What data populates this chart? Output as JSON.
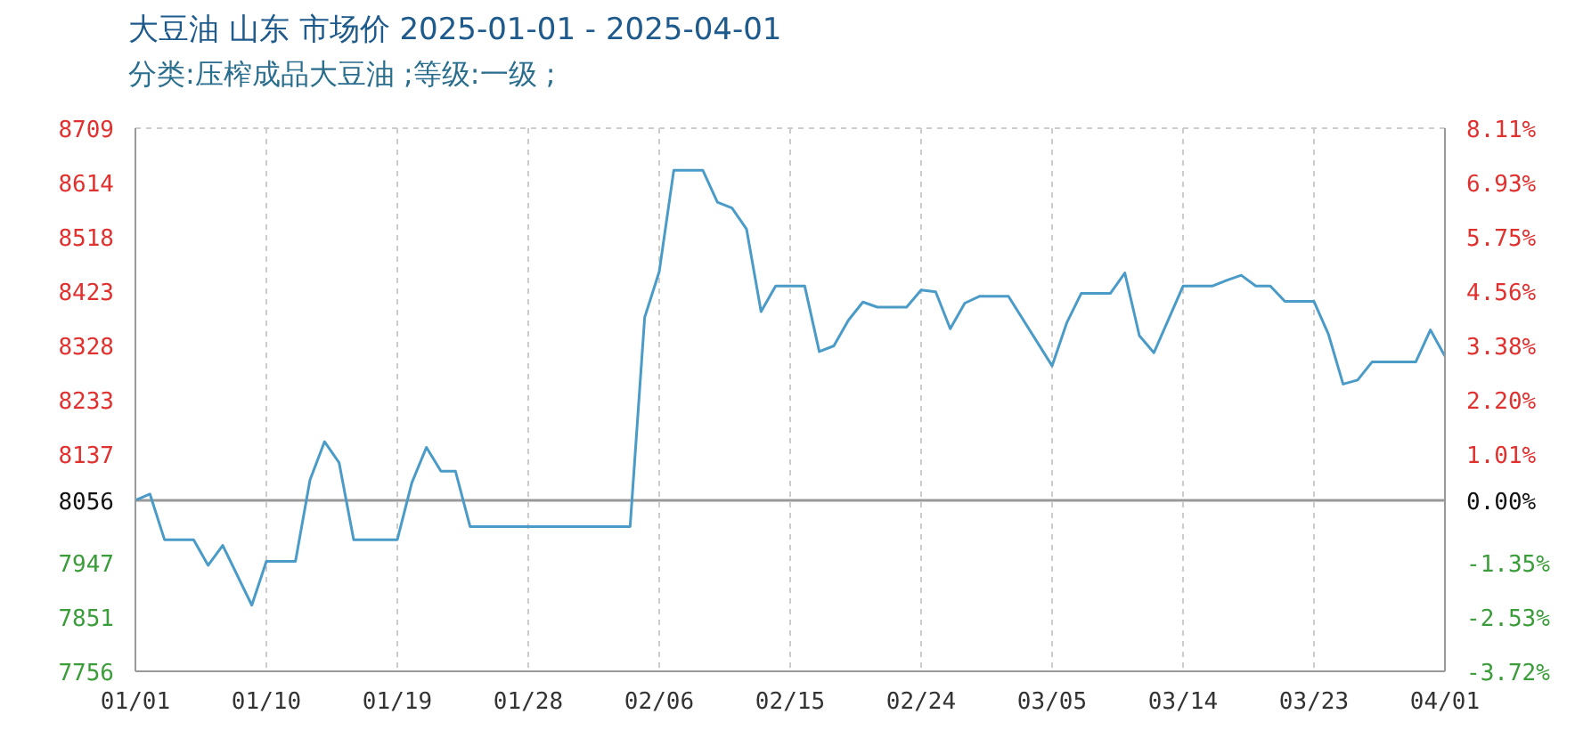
{
  "chart_data": {
    "type": "line",
    "title": "大豆油 山东 市场价 2025-01-01 - 2025-04-01",
    "subtitle": "分类:压榨成品大豆油 ;等级:一级 ;",
    "x": [
      "2025-01-01",
      "2025-01-02",
      "2025-01-03",
      "2025-01-05",
      "2025-01-06",
      "2025-01-07",
      "2025-01-09",
      "2025-01-10",
      "2025-01-12",
      "2025-01-13",
      "2025-01-14",
      "2025-01-15",
      "2025-01-16",
      "2025-01-19",
      "2025-01-20",
      "2025-01-21",
      "2025-01-22",
      "2025-01-23",
      "2025-01-24",
      "2025-02-04",
      "2025-02-05",
      "2025-02-06",
      "2025-02-07",
      "2025-02-09",
      "2025-02-10",
      "2025-02-11",
      "2025-02-12",
      "2025-02-13",
      "2025-02-14",
      "2025-02-16",
      "2025-02-17",
      "2025-02-18",
      "2025-02-19",
      "2025-02-20",
      "2025-02-21",
      "2025-02-23",
      "2025-02-24",
      "2025-02-25",
      "2025-02-26",
      "2025-02-27",
      "2025-02-28",
      "2025-03-02",
      "2025-03-05",
      "2025-03-06",
      "2025-03-07",
      "2025-03-09",
      "2025-03-10",
      "2025-03-11",
      "2025-03-12",
      "2025-03-14",
      "2025-03-16",
      "2025-03-17",
      "2025-03-18",
      "2025-03-19",
      "2025-03-20",
      "2025-03-21",
      "2025-03-23",
      "2025-03-24",
      "2025-03-25",
      "2025-03-26",
      "2025-03-27",
      "2025-03-30",
      "2025-03-31",
      "2025-04-01"
    ],
    "series": [
      {
        "color": "#4b9bc8",
        "values": [
          8056,
          8067,
          7987,
          7987,
          7942,
          7977,
          7872,
          7949,
          7949,
          8092,
          8159,
          8122,
          7987,
          7987,
          8087,
          8149,
          8107,
          8107,
          8010,
          8010,
          8377,
          8457,
          8635,
          8635,
          8579,
          8569,
          8532,
          8387,
          8432,
          8432,
          8317,
          8327,
          8372,
          8404,
          8395,
          8395,
          8425,
          8422,
          8357,
          8402,
          8414,
          8414,
          8292,
          8367,
          8419,
          8419,
          8455,
          8345,
          8315,
          8432,
          8432,
          8442,
          8451,
          8432,
          8432,
          8405,
          8405,
          8347,
          8260,
          8267,
          8299,
          8299,
          8355,
          8309
        ]
      }
    ],
    "xlim": [
      "2025-01-01",
      "2025-04-01"
    ],
    "xticks": [
      {
        "value": "2025-01-01",
        "label": "01/01"
      },
      {
        "value": "2025-01-10",
        "label": "01/10"
      },
      {
        "value": "2025-01-19",
        "label": "01/19"
      },
      {
        "value": "2025-01-28",
        "label": "01/28"
      },
      {
        "value": "2025-02-06",
        "label": "02/06"
      },
      {
        "value": "2025-02-15",
        "label": "02/15"
      },
      {
        "value": "2025-02-24",
        "label": "02/24"
      },
      {
        "value": "2025-03-05",
        "label": "03/05"
      },
      {
        "value": "2025-03-14",
        "label": "03/14"
      },
      {
        "value": "2025-03-23",
        "label": "03/23"
      },
      {
        "value": "2025-04-01",
        "label": "04/01"
      }
    ],
    "ylim": [
      7756,
      8709
    ],
    "yticks": [
      8709,
      8614,
      8518,
      8423,
      8328,
      8233,
      8137,
      8056,
      7947,
      7851,
      7756
    ],
    "y2lim": [
      -3.72,
      8.11
    ],
    "y2ticks": [
      {
        "value": 8.11,
        "label": "8.11%"
      },
      {
        "value": 6.93,
        "label": "6.93%"
      },
      {
        "value": 5.75,
        "label": "5.75%"
      },
      {
        "value": 4.56,
        "label": "4.56%"
      },
      {
        "value": 3.38,
        "label": "3.38%"
      },
      {
        "value": 2.2,
        "label": "2.20%"
      },
      {
        "value": 1.01,
        "label": "1.01%"
      },
      {
        "value": 0,
        "label": "0.00%"
      },
      {
        "value": -1.35,
        "label": "-1.35%"
      },
      {
        "value": -2.53,
        "label": "-2.53%"
      },
      {
        "value": -3.72,
        "label": "-3.72%"
      }
    ],
    "ref_lines": [
      {
        "axis": "y",
        "value": 8056,
        "color": "#999999"
      }
    ],
    "grid": true,
    "marker": "none",
    "line_style": "solid"
  }
}
